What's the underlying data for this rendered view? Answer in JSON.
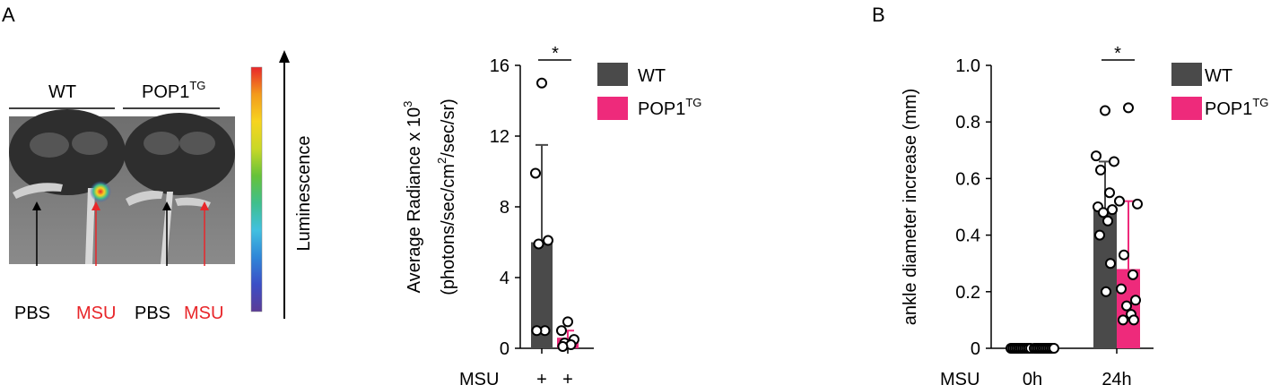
{
  "panels": {
    "a": {
      "label": "A"
    },
    "b": {
      "label": "B"
    }
  },
  "image_panel": {
    "group_labels": [
      "WT",
      "POP1",
      "TG"
    ],
    "luminescence_label": "Luminescence",
    "arrow_labels": [
      {
        "text": "PBS",
        "color": "#000000"
      },
      {
        "text": "MSU",
        "color": "#e8262a"
      },
      {
        "text": "PBS",
        "color": "#000000"
      },
      {
        "text": "MSU",
        "color": "#e8262a"
      }
    ],
    "colorbar": [
      "#5b3c96",
      "#3b4ec6",
      "#2f86d8",
      "#41c0e0",
      "#3fbf8c",
      "#66c23a",
      "#c9d827",
      "#f7d41f",
      "#f39a1c",
      "#e8262a"
    ]
  },
  "colors": {
    "wt": "#4a4a4a",
    "tg": "#ee2a7b",
    "msu_red": "#e8262a"
  },
  "chart_data": [
    {
      "type": "bar",
      "ylabel_line1": "Average Radiance x 10",
      "ylabel_sup1": "3",
      "ylabel_line2": "(photons/sec/cm",
      "ylabel_sup2": "2",
      "ylabel_end": "/sec/sr)",
      "ylim": [
        0,
        16
      ],
      "yticks": [
        "0",
        "4",
        "8",
        "12",
        "16"
      ],
      "xrow_label": "MSU",
      "categories": [
        "+",
        "+"
      ],
      "series": [
        {
          "name": "WT",
          "value": 6.0,
          "sd_upper": 11.5,
          "points": [
            15.0,
            9.9,
            6.1,
            5.9,
            1.0,
            1.0
          ]
        },
        {
          "name": "POP1TG",
          "value": 0.6,
          "sd_upper": 1.0,
          "points": [
            1.5,
            1.0,
            0.5,
            0.3,
            0.2,
            0.1
          ]
        }
      ],
      "legend": [
        "WT",
        "POP1",
        "TG"
      ],
      "significance": "*"
    },
    {
      "type": "bar",
      "ylabel": "ankle diameter increase (mm)",
      "ylim": [
        0,
        1.0
      ],
      "yticks": [
        "0",
        "0.2",
        "0.4",
        "0.6",
        "0.8",
        "1.0"
      ],
      "xrow_label": "MSU",
      "categories": [
        "0h",
        "24h"
      ],
      "series": [
        {
          "name": "WT",
          "values": [
            0.0,
            0.49
          ],
          "sd_upper": [
            0.0,
            0.66
          ],
          "points": [
            [
              0,
              0,
              0,
              0,
              0,
              0,
              0,
              0,
              0,
              0,
              0
            ],
            [
              0.84,
              0.68,
              0.66,
              0.63,
              0.55,
              0.5,
              0.49,
              0.48,
              0.45,
              0.4,
              0.3,
              0.2
            ]
          ]
        },
        {
          "name": "POP1TG",
          "values": [
            0.0,
            0.28
          ],
          "sd_upper": [
            0.0,
            0.52
          ],
          "points": [
            [
              0,
              0,
              0,
              0,
              0,
              0,
              0,
              0,
              0,
              0,
              0
            ],
            [
              0.85,
              0.52,
              0.51,
              0.33,
              0.26,
              0.21,
              0.17,
              0.15,
              0.12,
              0.1,
              0.1
            ]
          ]
        }
      ],
      "legend": [
        "WT",
        "POP1",
        "TG"
      ],
      "significance": "*"
    }
  ]
}
